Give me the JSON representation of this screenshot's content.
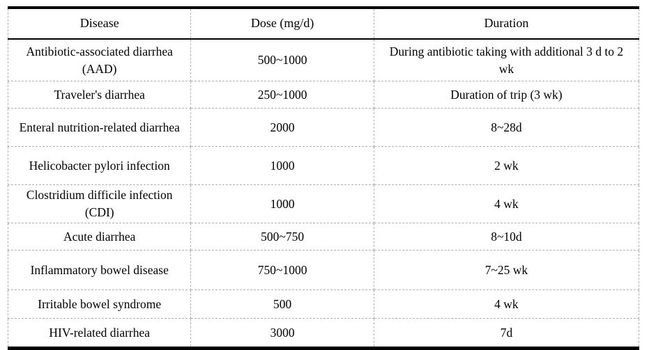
{
  "table": {
    "columns": [
      "Disease",
      "Dose (mg/d)",
      "Duration"
    ],
    "rows": [
      {
        "disease": "Antibiotic-associated diarrhea (AAD)",
        "dose": "500~1000",
        "duration": "During antibiotic taking with additional 3 d to 2 wk"
      },
      {
        "disease": "Traveler's diarrhea",
        "dose": "250~1000",
        "duration": "Duration of trip (3 wk)"
      },
      {
        "disease": "Enteral nutrition-related diarrhea",
        "dose": "2000",
        "duration": "8~28d"
      },
      {
        "disease": "Helicobacter pylori infection",
        "dose": "1000",
        "duration": "2 wk"
      },
      {
        "disease": "Clostridium difficile infection (CDI)",
        "dose": "1000",
        "duration": "4 wk"
      },
      {
        "disease": "Acute diarrhea",
        "dose": "500~750",
        "duration": "8~10d"
      },
      {
        "disease": "Inflammatory bowel disease",
        "dose": "750~1000",
        "duration": "7~25 wk"
      },
      {
        "disease": "Irritable bowel syndrome",
        "dose": "500",
        "duration": "4 wk"
      },
      {
        "disease": "HIV-related diarrhea",
        "dose": "3000",
        "duration": "7d"
      }
    ],
    "colors": {
      "text": "#000000",
      "heavy_rule": "#000000",
      "dashed_grid": "#b0b0b0",
      "background": "#ffffff"
    }
  }
}
